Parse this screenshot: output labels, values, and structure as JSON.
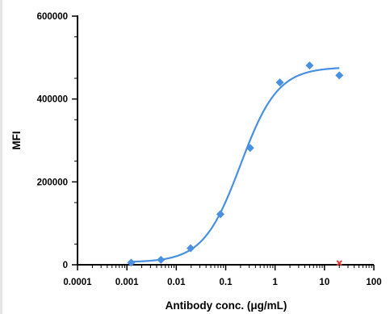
{
  "chart_data": {
    "type": "scatter",
    "xlabel": "Antibody conc. (μg/mL)",
    "ylabel": "MFI",
    "xscale": "log",
    "xlim": [
      0.0001,
      100
    ],
    "ylim": [
      0,
      600000
    ],
    "x_ticks": [
      {
        "value": 0.0001,
        "label": "0.0001"
      },
      {
        "value": 0.001,
        "label": "0.001"
      },
      {
        "value": 0.01,
        "label": "0.01"
      },
      {
        "value": 0.1,
        "label": "0.1"
      },
      {
        "value": 1,
        "label": "1"
      },
      {
        "value": 10,
        "label": "10"
      },
      {
        "value": 100,
        "label": "100"
      }
    ],
    "y_ticks": [
      {
        "value": 0,
        "label": "0"
      },
      {
        "value": 200000,
        "label": "200000"
      },
      {
        "value": 400000,
        "label": "400000"
      },
      {
        "value": 600000,
        "label": "600000"
      }
    ],
    "series": [
      {
        "color": "#4a90e2",
        "marker": "diamond",
        "x": [
          0.00122,
          0.00488,
          0.0195,
          0.0781,
          0.3125,
          1.25,
          5,
          20
        ],
        "y": [
          5000,
          12000,
          40000,
          122000,
          282000,
          440000,
          481000,
          457000
        ],
        "fit": {
          "model": "4PL",
          "bottom": 6000,
          "top": 477000,
          "ec50": 0.2,
          "hill": 1.15
        }
      },
      {
        "color": "#e53935",
        "marker": "x",
        "x": [
          20
        ],
        "y": [
          4000
        ]
      }
    ],
    "grid": false
  }
}
